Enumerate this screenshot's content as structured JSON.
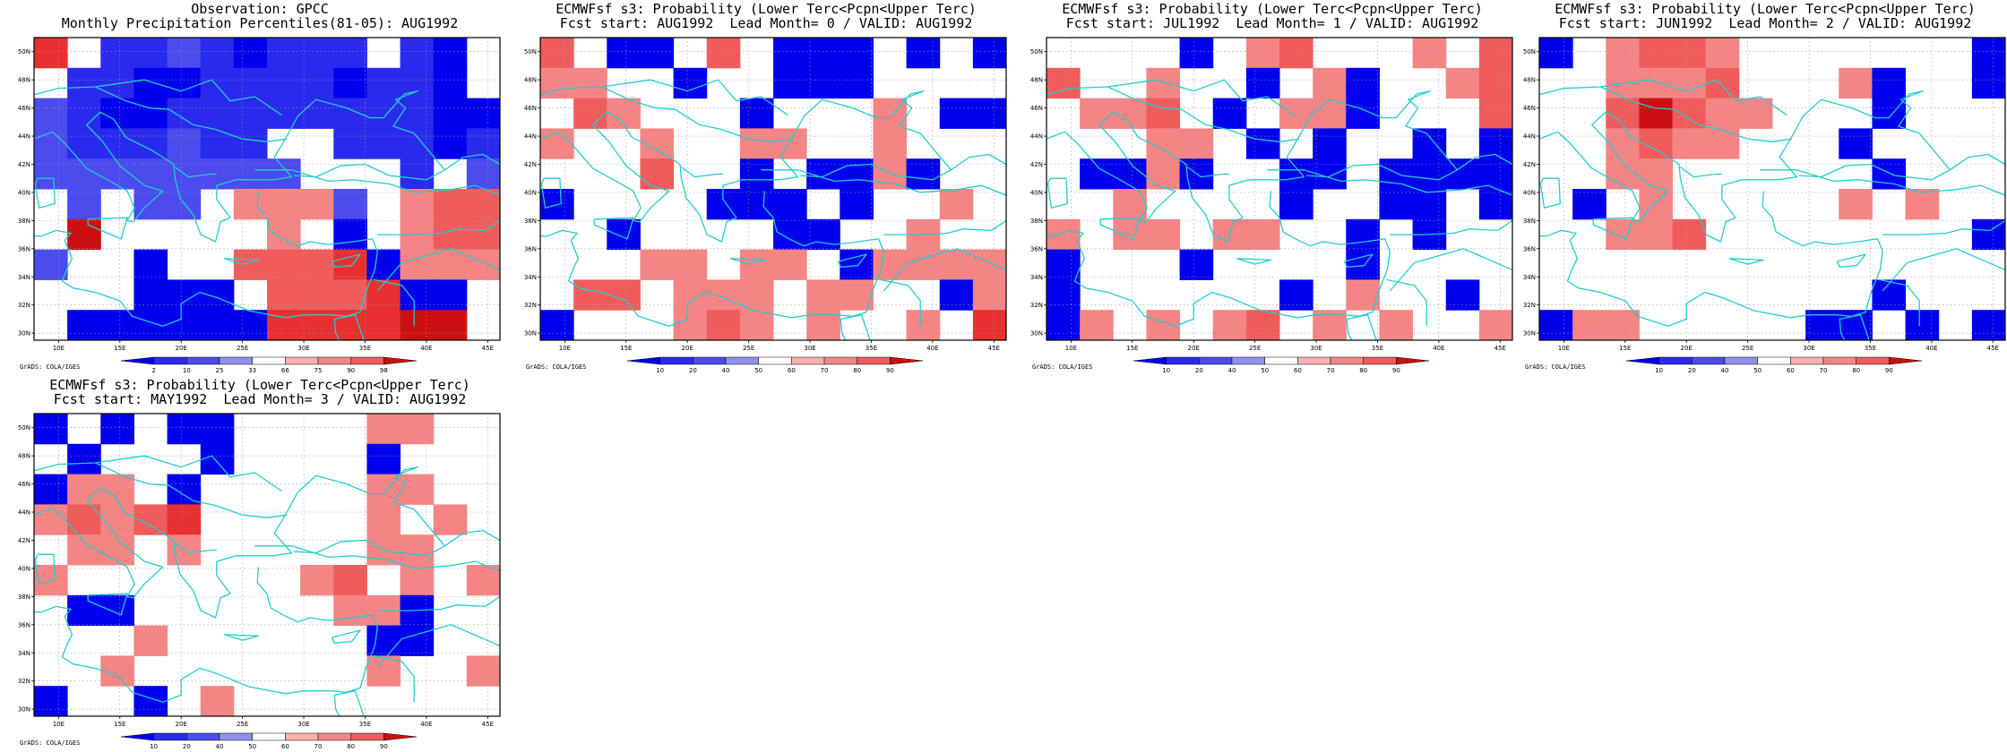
{
  "credit": "GrADS: COLA/IGES",
  "x_ticks": [
    "10E",
    "15E",
    "20E",
    "25E",
    "30E",
    "35E",
    "40E",
    "45E"
  ],
  "y_ticks": [
    "50N",
    "48N",
    "46N",
    "44N",
    "42N",
    "40N",
    "38N",
    "36N",
    "34N",
    "32N",
    "30N"
  ],
  "colors": {
    "blue_scale": [
      "#0000ee",
      "#2a2aee",
      "#4b4bee",
      "#6e6eee",
      "#9090ee",
      "#b8b8f3"
    ],
    "red_scale": [
      "#fbb0b0",
      "#f58585",
      "#f05c5c",
      "#e83030",
      "#cc1010",
      "#990000"
    ],
    "coast": "#22cccc"
  },
  "panels": [
    {
      "title_line1": "Observation: GPCC",
      "title_line2": "Monthly Precipitation Percentiles(81-05): AUG1992",
      "colorbar": [
        "2",
        "10",
        "25",
        "33",
        "66",
        "75",
        "90",
        "98"
      ],
      "scale": "obs"
    },
    {
      "title_line1": "ECMWFsf s3: Probability (Lower Terc<Pcpn<Upper Terc)",
      "title_line2": "Fcst start: AUG1992  Lead Month= 0 / VALID: AUG1992",
      "colorbar": [
        "10",
        "20",
        "40",
        "50",
        "60",
        "70",
        "80",
        "90"
      ],
      "scale": "prob"
    },
    {
      "title_line1": "ECMWFsf s3: Probability (Lower Terc<Pcpn<Upper Terc)",
      "title_line2": "Fcst start: JUL1992  Lead Month= 1 / VALID: AUG1992",
      "colorbar": [
        "10",
        "20",
        "40",
        "50",
        "60",
        "70",
        "80",
        "90"
      ],
      "scale": "prob"
    },
    {
      "title_line1": "ECMWFsf s3: Probability (Lower Terc<Pcpn<Upper Terc)",
      "title_line2": "Fcst start: JUN1992  Lead Month= 2 / VALID: AUG1992",
      "colorbar": [
        "10",
        "20",
        "40",
        "50",
        "60",
        "70",
        "80",
        "90"
      ],
      "scale": "prob"
    },
    {
      "title_line1": "ECMWFsf s3: Probability (Lower Terc<Pcpn<Upper Terc)",
      "title_line2": "Fcst start: MAY1992  Lead Month= 3 / VALID: AUG1992",
      "colorbar": [
        "10",
        "20",
        "40",
        "50",
        "60",
        "70",
        "80",
        "90"
      ],
      "scale": "prob"
    }
  ]
}
